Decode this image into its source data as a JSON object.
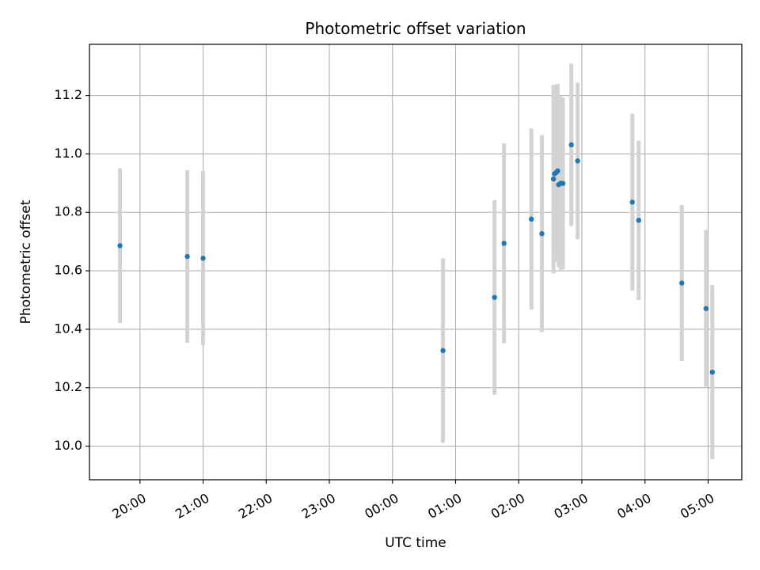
{
  "chart_data": {
    "type": "scatter",
    "title": "Photometric offset variation",
    "xlabel": "UTC time",
    "ylabel": "Photometric offset",
    "x_axis": "time",
    "xlim": [
      "19:12",
      "05:32"
    ],
    "ylim": [
      9.885,
      11.375
    ],
    "x_ticks": [
      "20:00",
      "21:00",
      "22:00",
      "23:00",
      "00:00",
      "01:00",
      "02:00",
      "03:00",
      "04:00",
      "05:00"
    ],
    "y_ticks": [
      10.0,
      10.2,
      10.4,
      10.6,
      10.8,
      11.0,
      11.2
    ],
    "grid": true,
    "legend": "none",
    "colors": {
      "point": "#1f77b4",
      "errorbar": "#d3d3d3",
      "grid": "#b0b0b0"
    },
    "points": [
      {
        "t": "19:41",
        "y": 10.686,
        "err": 0.265
      },
      {
        "t": "20:45",
        "y": 10.649,
        "err": 0.295
      },
      {
        "t": "21:00",
        "y": 10.643,
        "err": 0.298
      },
      {
        "t": "00:48",
        "y": 10.327,
        "err": 0.316
      },
      {
        "t": "01:37",
        "y": 10.509,
        "err": 0.333
      },
      {
        "t": "01:46",
        "y": 10.694,
        "err": 0.342
      },
      {
        "t": "02:12",
        "y": 10.777,
        "err": 0.31
      },
      {
        "t": "02:22",
        "y": 10.727,
        "err": 0.337
      },
      {
        "t": "02:33",
        "y": 10.914,
        "err": 0.323
      },
      {
        "t": "02:34",
        "y": 10.932,
        "err": 0.302
      },
      {
        "t": "02:36",
        "y": 10.938,
        "err": 0.297
      },
      {
        "t": "02:37",
        "y": 10.942,
        "err": 0.297
      },
      {
        "t": "02:38",
        "y": 10.895,
        "err": 0.283
      },
      {
        "t": "02:40",
        "y": 10.9,
        "err": 0.297
      },
      {
        "t": "02:42",
        "y": 10.899,
        "err": 0.293
      },
      {
        "t": "02:50",
        "y": 11.031,
        "err": 0.278
      },
      {
        "t": "02:56",
        "y": 10.976,
        "err": 0.268
      },
      {
        "t": "03:48",
        "y": 10.835,
        "err": 0.303
      },
      {
        "t": "03:54",
        "y": 10.773,
        "err": 0.273
      },
      {
        "t": "04:35",
        "y": 10.558,
        "err": 0.267
      },
      {
        "t": "04:58",
        "y": 10.471,
        "err": 0.268
      },
      {
        "t": "05:04",
        "y": 10.253,
        "err": 0.298
      }
    ]
  }
}
